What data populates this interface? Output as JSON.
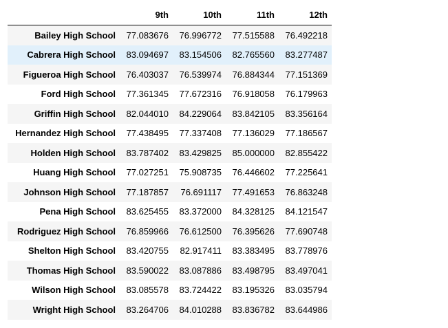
{
  "table": {
    "columns": [
      "",
      "9th",
      "10th",
      "11th",
      "12th"
    ],
    "highlighted_row": "Cabrera High School",
    "rows": [
      {
        "school": "Bailey High School",
        "values": [
          "77.083676",
          "76.996772",
          "77.515588",
          "76.492218"
        ]
      },
      {
        "school": "Cabrera High School",
        "values": [
          "83.094697",
          "83.154506",
          "82.765560",
          "83.277487"
        ]
      },
      {
        "school": "Figueroa High School",
        "values": [
          "76.403037",
          "76.539974",
          "76.884344",
          "77.151369"
        ]
      },
      {
        "school": "Ford High School",
        "values": [
          "77.361345",
          "77.672316",
          "76.918058",
          "76.179963"
        ]
      },
      {
        "school": "Griffin High School",
        "values": [
          "82.044010",
          "84.229064",
          "83.842105",
          "83.356164"
        ]
      },
      {
        "school": "Hernandez High School",
        "values": [
          "77.438495",
          "77.337408",
          "77.136029",
          "77.186567"
        ]
      },
      {
        "school": "Holden High School",
        "values": [
          "83.787402",
          "83.429825",
          "85.000000",
          "82.855422"
        ]
      },
      {
        "school": "Huang High School",
        "values": [
          "77.027251",
          "75.908735",
          "76.446602",
          "77.225641"
        ]
      },
      {
        "school": "Johnson High School",
        "values": [
          "77.187857",
          "76.691117",
          "77.491653",
          "76.863248"
        ]
      },
      {
        "school": "Pena High School",
        "values": [
          "83.625455",
          "83.372000",
          "84.328125",
          "84.121547"
        ]
      },
      {
        "school": "Rodriguez High School",
        "values": [
          "76.859966",
          "76.612500",
          "76.395626",
          "77.690748"
        ]
      },
      {
        "school": "Shelton High School",
        "values": [
          "83.420755",
          "82.917411",
          "83.383495",
          "83.778976"
        ]
      },
      {
        "school": "Thomas High School",
        "values": [
          "83.590022",
          "83.087886",
          "83.498795",
          "83.497041"
        ]
      },
      {
        "school": "Wilson High School",
        "values": [
          "83.085578",
          "83.724422",
          "83.195326",
          "83.035794"
        ]
      },
      {
        "school": "Wright High School",
        "values": [
          "83.264706",
          "84.010288",
          "83.836782",
          "83.644986"
        ]
      }
    ]
  }
}
